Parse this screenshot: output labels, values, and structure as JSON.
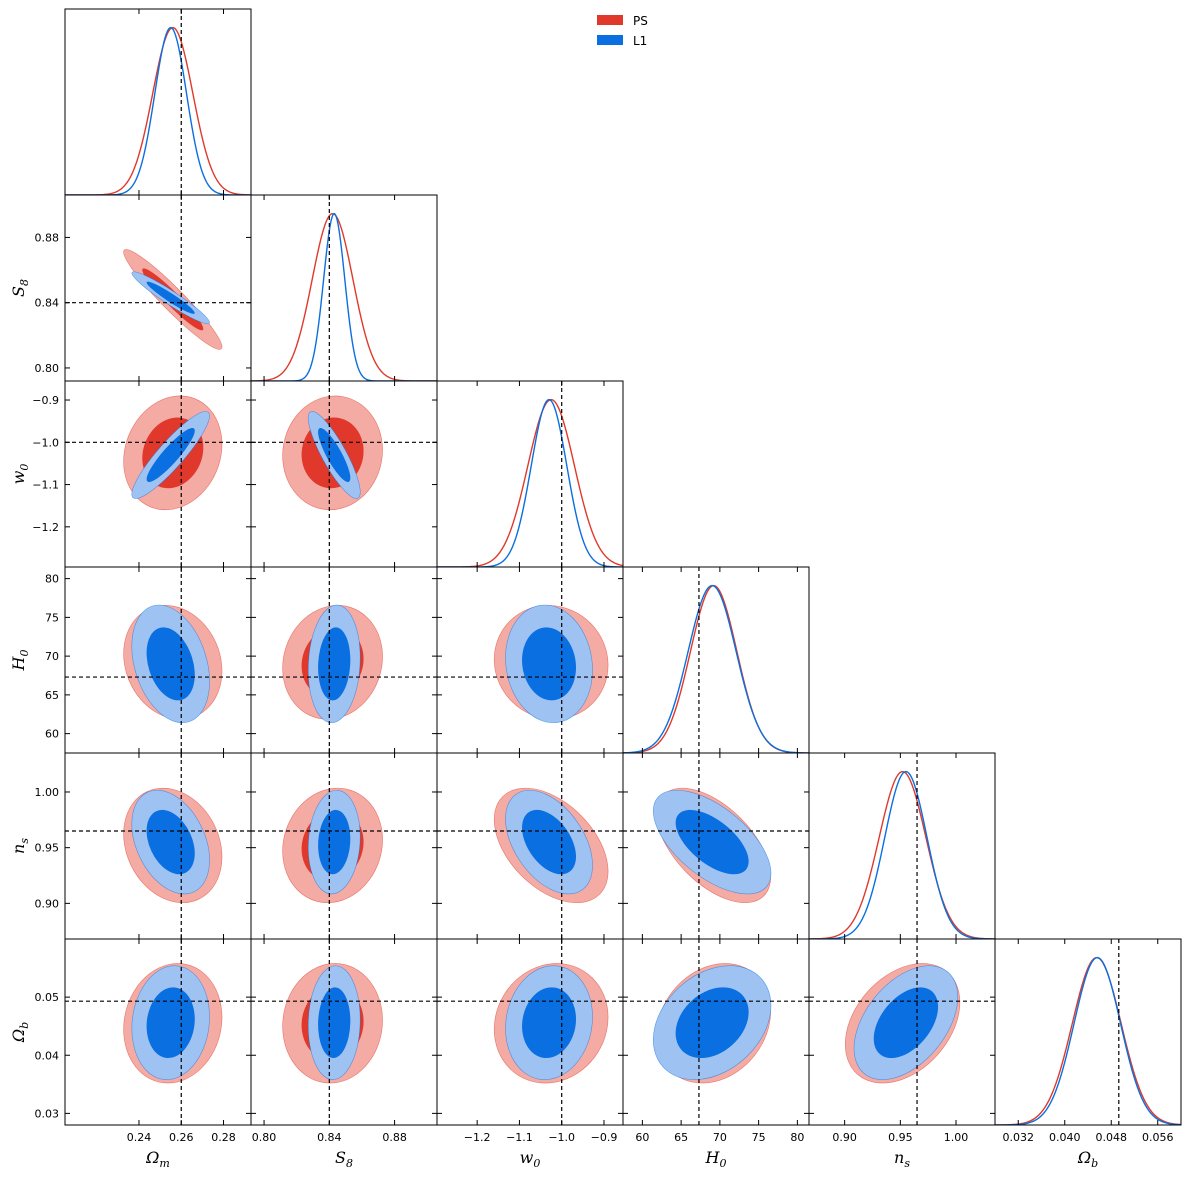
{
  "chart_data": {
    "type": "corner",
    "params": [
      {
        "key": "omega_m",
        "label": "Ω_m",
        "sym": "Ω",
        "sub": "m",
        "range": [
          0.205,
          0.293
        ],
        "ticks": [
          0.24,
          0.26,
          0.28
        ],
        "tick_labels": [
          "0.24",
          "0.26",
          "0.28"
        ],
        "truth": 0.26
      },
      {
        "key": "s8",
        "label": "S_8",
        "sym": "S",
        "sub": "8",
        "range": [
          0.792,
          0.906
        ],
        "ticks": [
          0.8,
          0.84,
          0.88
        ],
        "tick_labels": [
          "0.80",
          "0.84",
          "0.88"
        ],
        "truth": 0.84
      },
      {
        "key": "w0",
        "label": "w_0",
        "sym": "w",
        "sub": "0",
        "range": [
          -1.295,
          -0.855
        ],
        "ticks": [
          -1.2,
          -1.1,
          -1.0,
          -0.9
        ],
        "tick_labels": [
          "−1.2",
          "−1.1",
          "−1.0",
          "−0.9"
        ],
        "truth": -1.0
      },
      {
        "key": "h0",
        "label": "H_0",
        "sym": "H",
        "sub": "0",
        "range": [
          57.5,
          81.5
        ],
        "ticks": [
          60,
          65,
          70,
          75,
          80
        ],
        "tick_labels": [
          "60",
          "65",
          "70",
          "75",
          "80"
        ],
        "truth": 67.3
      },
      {
        "key": "ns",
        "label": "n_s",
        "sym": "n",
        "sub": "s",
        "range": [
          0.868,
          1.035
        ],
        "ticks": [
          0.9,
          0.95,
          1.0
        ],
        "tick_labels": [
          "0.90",
          "0.95",
          "1.00"
        ],
        "truth": 0.965
      },
      {
        "key": "omega_b",
        "label": "Ω_b",
        "sym": "Ω",
        "sub": "b",
        "range": [
          0.028,
          0.06
        ],
        "ticks": [
          0.03,
          0.04,
          0.05
        ],
        "tick_labels": [
          "0.03",
          "0.04",
          "0.05"
        ],
        "truth": 0.0493
      }
    ],
    "bottom_tick_overrides": {
      "omega_b": {
        "ticks": [
          0.032,
          0.04,
          0.048,
          0.056
        ],
        "tick_labels": [
          "0.032",
          "0.040",
          "0.048",
          "0.056"
        ]
      }
    },
    "series": [
      {
        "name": "PS",
        "color": "#e0392b",
        "contour_inner": "#e0392b",
        "contour_outer": "#f3aba4",
        "means": [
          0.256,
          0.842,
          -1.025,
          69.2,
          0.952,
          0.0455
        ],
        "sigmas": [
          0.0095,
          0.0125,
          0.055,
          3.0,
          0.021,
          0.0042
        ],
        "correlations": {
          "1-0": -0.95,
          "2-0": 0.15,
          "2-1": 0.05,
          "3-0": -0.15,
          "3-1": 0.1,
          "3-2": -0.05,
          "4-0": -0.2,
          "4-1": 0.1,
          "4-2": -0.45,
          "4-3": -0.55,
          "5-0": 0.1,
          "5-1": 0.05,
          "5-2": 0.1,
          "5-3": 0.2,
          "5-4": 0.35
        }
      },
      {
        "name": "L1",
        "color": "#0a6fe0",
        "contour_inner": "#0a6fe0",
        "contour_outer": "#9ec3f3",
        "means": [
          0.255,
          0.843,
          -1.03,
          69.0,
          0.955,
          0.0456
        ],
        "sigmas": [
          0.0075,
          0.0065,
          0.042,
          3.1,
          0.019,
          0.004
        ],
        "correlations": {
          "1-0": -0.95,
          "2-0": 0.9,
          "2-1": -0.85,
          "3-0": -0.3,
          "3-1": 0.1,
          "3-2": -0.1,
          "4-0": -0.35,
          "4-1": 0.1,
          "4-2": -0.45,
          "4-3": -0.6,
          "5-0": 0.1,
          "5-1": 0.05,
          "5-2": 0.1,
          "5-3": 0.3,
          "5-4": 0.45
        }
      }
    ],
    "legend": {
      "position": "top-center",
      "entries": [
        "PS",
        "L1"
      ]
    },
    "truth_line_style": "dashed-black"
  }
}
